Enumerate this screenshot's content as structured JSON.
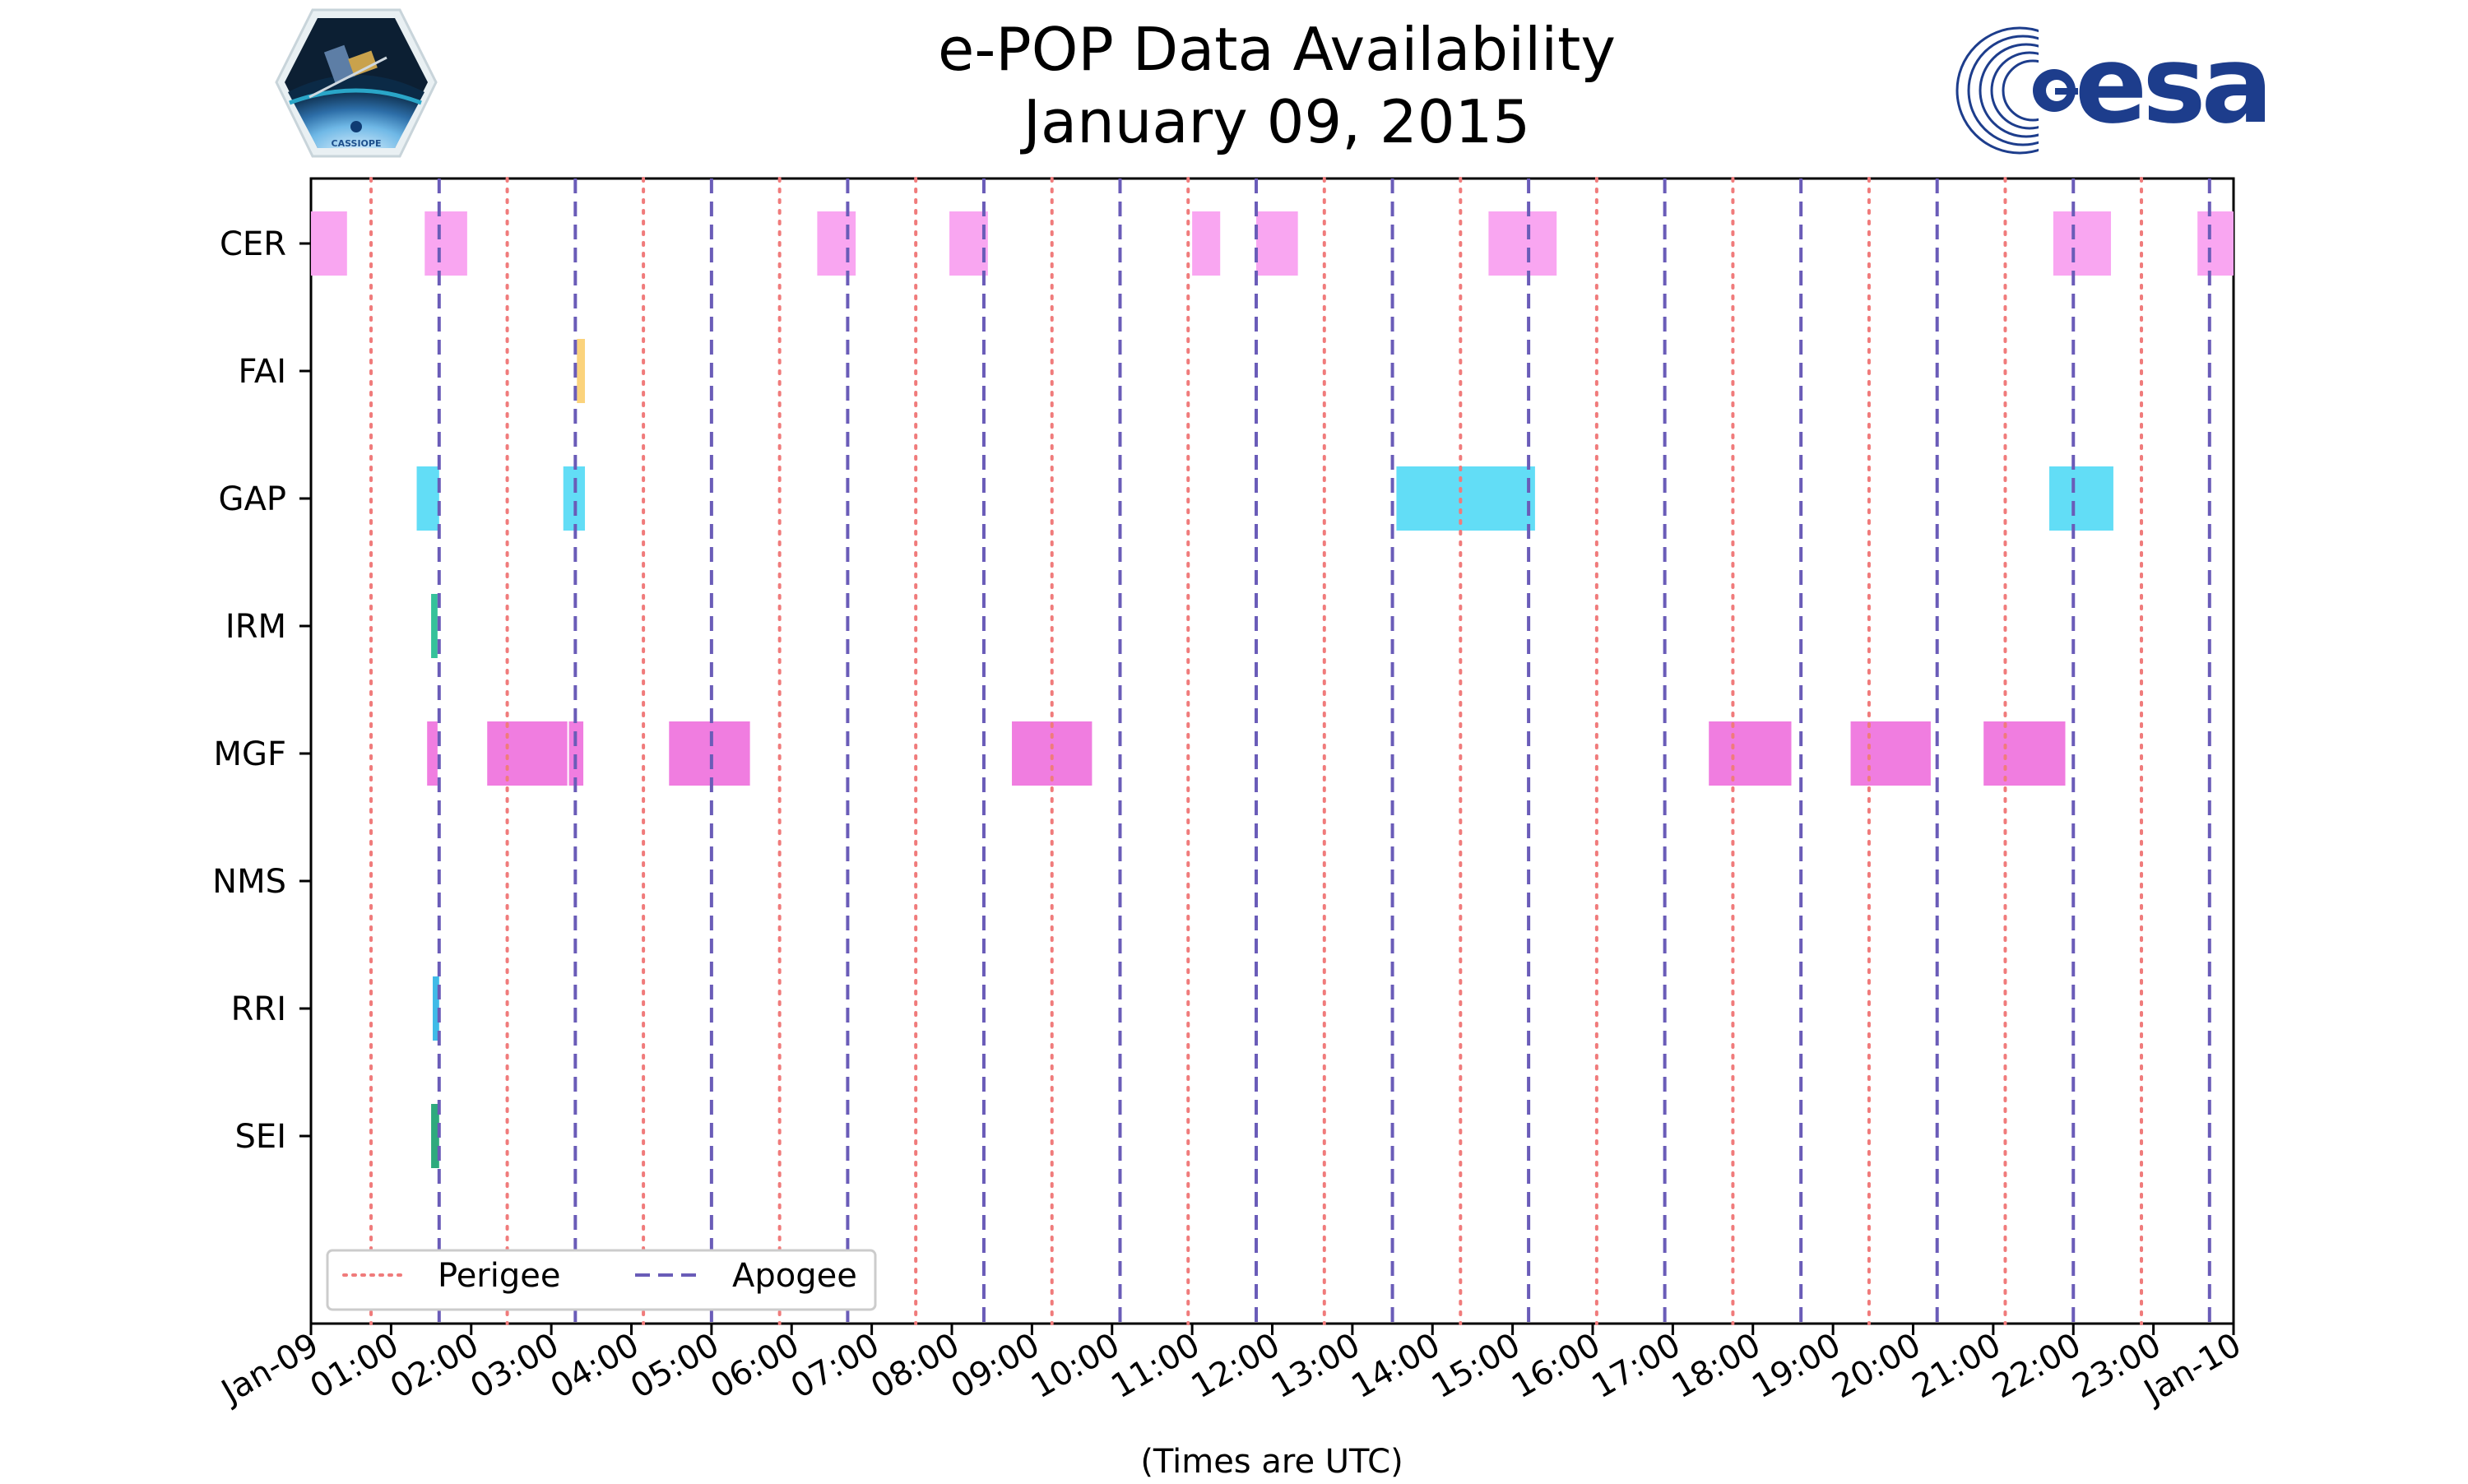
{
  "chart_data": {
    "type": "timeline",
    "title": "e-POP Data Availability",
    "subtitle": "January 09, 2015",
    "xlabel": "(Times are UTC)",
    "x_range_hours": [
      0,
      24
    ],
    "x_tick_labels": [
      "Jan-09",
      "01:00",
      "02:00",
      "03:00",
      "04:00",
      "05:00",
      "06:00",
      "07:00",
      "08:00",
      "09:00",
      "10:00",
      "11:00",
      "12:00",
      "13:00",
      "14:00",
      "15:00",
      "16:00",
      "17:00",
      "18:00",
      "19:00",
      "20:00",
      "21:00",
      "22:00",
      "23:00",
      "Jan-10"
    ],
    "instruments": [
      "CER",
      "FAI",
      "GAP",
      "IRM",
      "MGF",
      "NMS",
      "RRI",
      "SEI"
    ],
    "colors": {
      "CER": "#f9a6f1",
      "FAI": "#fbd37c",
      "GAP": "#62ddf6",
      "IRM": "#35c29a",
      "MGF": "#f07de0",
      "NMS": "#cccccc",
      "RRI": "#3fbbe8",
      "SEI": "#2eaa7d",
      "perigee": "#f07b7b",
      "apogee": "#6a5cb8"
    },
    "intervals": {
      "CER": [
        [
          0.0,
          0.45
        ],
        [
          1.42,
          1.95
        ],
        [
          6.32,
          6.8
        ],
        [
          7.97,
          8.45
        ],
        [
          11.0,
          11.35
        ],
        [
          11.8,
          12.32
        ],
        [
          14.7,
          15.55
        ],
        [
          21.75,
          22.47
        ],
        [
          23.55,
          24.0
        ]
      ],
      "FAI": [
        [
          3.32,
          3.42
        ]
      ],
      "GAP": [
        [
          1.32,
          1.6
        ],
        [
          3.15,
          3.42
        ],
        [
          13.55,
          15.28
        ],
        [
          21.7,
          22.5
        ]
      ],
      "IRM": [
        [
          1.5,
          1.58
        ]
      ],
      "MGF": [
        [
          1.45,
          1.58
        ],
        [
          2.2,
          3.2
        ],
        [
          3.22,
          3.4
        ],
        [
          4.47,
          5.48
        ],
        [
          8.75,
          9.75
        ],
        [
          17.45,
          18.48
        ],
        [
          19.22,
          20.22
        ],
        [
          20.88,
          21.9
        ]
      ],
      "NMS": [],
      "RRI": [
        [
          1.52,
          1.6
        ]
      ],
      "SEI": [
        [
          1.5,
          1.6
        ]
      ]
    },
    "perigee_hours": [
      0.75,
      2.45,
      4.15,
      5.85,
      7.55,
      9.25,
      10.95,
      12.65,
      14.35,
      16.05,
      17.75,
      19.45,
      21.15,
      22.85
    ],
    "apogee_hours": [
      1.6,
      3.3,
      5.0,
      6.7,
      8.4,
      10.1,
      11.8,
      13.5,
      15.2,
      16.9,
      18.6,
      20.3,
      22.0,
      23.7
    ],
    "legend": {
      "placement": "bottom-left",
      "entries": [
        {
          "label": "Perigee",
          "style": "dotted"
        },
        {
          "label": "Apogee",
          "style": "dashed"
        }
      ]
    }
  },
  "logos": {
    "left_text": "CASSIOPE",
    "right_text": "esa"
  }
}
